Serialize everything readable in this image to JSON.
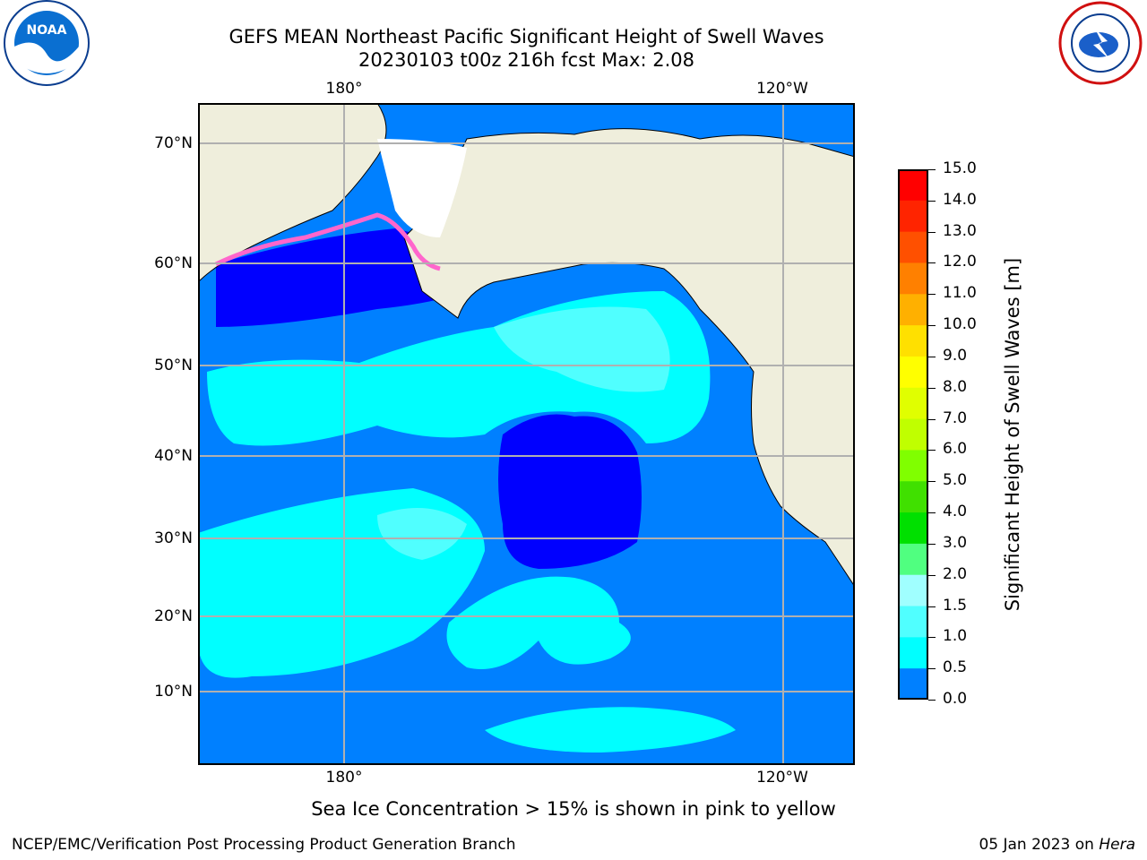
{
  "header": {
    "title_line1": "GEFS MEAN Northeast Pacific Significant Height of Swell Waves",
    "title_line2": "20230103 t00z 216h fcst   Max: 2.08"
  },
  "logos": {
    "left": "noaa-logo",
    "right": "nws-logo",
    "noaa_text": "NOAA"
  },
  "map": {
    "lon_labels": [
      "180°",
      "120°W"
    ],
    "lat_labels": [
      "70°N",
      "60°N",
      "50°N",
      "40°N",
      "30°N",
      "20°N",
      "10°N"
    ],
    "colors": {
      "land": "#efeedc",
      "ocean_base": "#0080ff",
      "swell_low": "#0000ff",
      "swell_mid": "#00ffff",
      "swell_high": "#50ffff",
      "ice": "#ff66cc",
      "grid": "#b0b0b0"
    }
  },
  "colorbar": {
    "label": "Significant Height of Swell Waves [m]",
    "ticks": [
      "15.0",
      "14.0",
      "13.0",
      "12.0",
      "11.0",
      "10.0",
      "9.0",
      "8.0",
      "7.0",
      "6.0",
      "5.0",
      "4.0",
      "3.0",
      "2.0",
      "1.5",
      "1.0",
      "0.5",
      "0.0"
    ],
    "colors": [
      "#ff0000",
      "#ff2400",
      "#ff5000",
      "#ff8000",
      "#ffb000",
      "#ffe000",
      "#ffff00",
      "#e0ff00",
      "#c0ff00",
      "#80ff00",
      "#40e000",
      "#00e000",
      "#50ff80",
      "#a0ffff",
      "#50ffff",
      "#00ffff",
      "#0080ff",
      "#0000ff"
    ]
  },
  "note": "Sea Ice Concentration > 15% is shown in pink to yellow",
  "footer": {
    "left": "NCEP/EMC/Verification Post Processing Product Generation Branch",
    "right_date": "05 Jan 2023 on",
    "right_host": "Hera"
  }
}
